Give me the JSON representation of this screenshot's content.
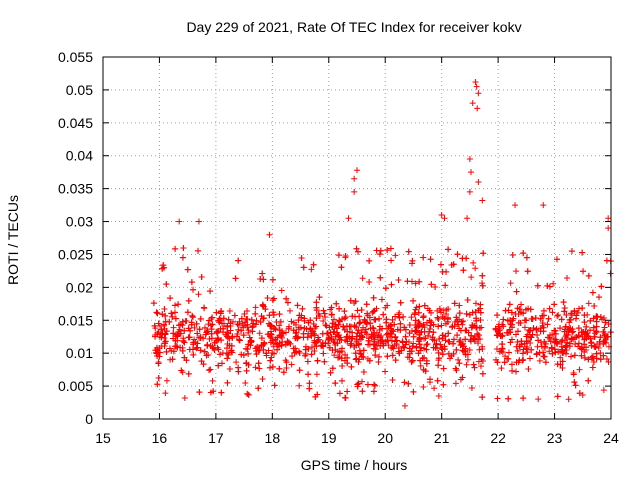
{
  "chart_data": {
    "type": "scatter",
    "title": "Day 229 of 2021, Rate Of TEC Index for receiver kokv",
    "xlabel": "GPS time / hours",
    "ylabel": "ROTI / TECUs",
    "xlim": [
      15,
      24
    ],
    "ylim": [
      0,
      0.055
    ],
    "xticks": [
      15,
      16,
      17,
      18,
      19,
      20,
      21,
      22,
      23,
      24
    ],
    "yticks": [
      0,
      0.005,
      0.01,
      0.015,
      0.02,
      0.025,
      0.03,
      0.035,
      0.04,
      0.045,
      0.05,
      0.055
    ],
    "xtick_labels": [
      "15",
      "16",
      "17",
      "18",
      "19",
      "20",
      "21",
      "22",
      "23",
      "24"
    ],
    "ytick_labels": [
      "0",
      "0.005",
      "0.01",
      "0.015",
      "0.02",
      "0.025",
      "0.03",
      "0.035",
      "0.04",
      "0.045",
      "0.05",
      "0.055"
    ],
    "grid": true,
    "marker": "+",
    "color": "#ff0000",
    "series": [
      {
        "name": "ROTI",
        "dense_band": {
          "x_range": [
            15.9,
            24.0
          ],
          "typical_range": [
            0.006,
            0.02
          ],
          "spread": [
            0.002,
            0.026
          ]
        },
        "data_gap": [
          21.75,
          21.95
        ],
        "notable_points": [
          {
            "x": 16.35,
            "y": 0.03
          },
          {
            "x": 16.7,
            "y": 0.03
          },
          {
            "x": 17.95,
            "y": 0.028
          },
          {
            "x": 19.35,
            "y": 0.0305
          },
          {
            "x": 19.45,
            "y": 0.0365
          },
          {
            "x": 19.5,
            "y": 0.0378
          },
          {
            "x": 19.45,
            "y": 0.0345
          },
          {
            "x": 20.35,
            "y": 0.002
          },
          {
            "x": 21.0,
            "y": 0.031
          },
          {
            "x": 21.05,
            "y": 0.0305
          },
          {
            "x": 21.45,
            "y": 0.0305
          },
          {
            "x": 21.5,
            "y": 0.0395
          },
          {
            "x": 21.52,
            "y": 0.0375
          },
          {
            "x": 21.5,
            "y": 0.0345
          },
          {
            "x": 21.55,
            "y": 0.048
          },
          {
            "x": 21.6,
            "y": 0.0512
          },
          {
            "x": 21.62,
            "y": 0.0505
          },
          {
            "x": 21.65,
            "y": 0.0495
          },
          {
            "x": 21.63,
            "y": 0.0472
          },
          {
            "x": 21.65,
            "y": 0.036
          },
          {
            "x": 21.72,
            "y": 0.0332
          },
          {
            "x": 22.3,
            "y": 0.0325
          },
          {
            "x": 22.8,
            "y": 0.0325
          },
          {
            "x": 23.95,
            "y": 0.0305
          },
          {
            "x": 23.95,
            "y": 0.029
          },
          {
            "x": 16.45,
            "y": 0.0032
          },
          {
            "x": 19.3,
            "y": 0.0032
          },
          {
            "x": 23.25,
            "y": 0.003
          },
          {
            "x": 20.95,
            "y": 0.0035
          }
        ]
      }
    ]
  }
}
